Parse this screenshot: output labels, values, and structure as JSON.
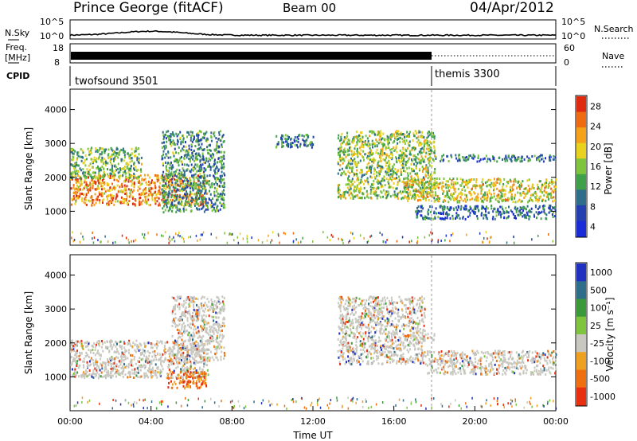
{
  "header": {
    "title": "Prince George (fitACF)",
    "beam": "Beam 00",
    "date": "04/Apr/2012"
  },
  "strip_sky": {
    "label": "N.Sky",
    "right_label": "N.Search",
    "left_ticks": [
      "10^5",
      "10^0"
    ],
    "right_ticks": [
      "10^5",
      "10^0"
    ]
  },
  "strip_freq": {
    "label_line1": "Freq.",
    "label_line2": "[MHz]",
    "right_label": "Nave",
    "left_ticks": [
      "18",
      "8"
    ],
    "right_ticks": [
      "60",
      "0"
    ]
  },
  "cpid": {
    "label": "CPID",
    "programs": [
      {
        "name": "twofsound 3501",
        "start_hour": 0
      },
      {
        "name": "themis 3300",
        "start_hour": 18
      }
    ],
    "boundary_hour": 18
  },
  "colors": {
    "power_scale": [
      "#1a2bd8",
      "#2440b0",
      "#2e6e8a",
      "#3fa04a",
      "#7ec43c",
      "#e8d21e",
      "#f5a21a",
      "#f06a12",
      "#e02a10"
    ],
    "velocity_scale": [
      "#2030c0",
      "#2e6e8a",
      "#3a9a3a",
      "#7ec43c",
      "#c8c8c0",
      "#f0a020",
      "#f07010",
      "#e83010"
    ],
    "ground_scatter": "#c0c0b8"
  },
  "chart_data": [
    {
      "type": "heatmap",
      "name": "power",
      "ylabel": "Slant Range [km]",
      "xlim_hours": [
        0,
        24
      ],
      "ylim": [
        0,
        4600
      ],
      "yticks": [
        "1000",
        "2000",
        "3000",
        "4000"
      ],
      "colorbar": {
        "label": "Power [dB]",
        "ticks": [
          "4",
          "8",
          "12",
          "16",
          "20",
          "24",
          "28"
        ],
        "range": [
          0,
          30
        ]
      },
      "scatter_regions": [
        {
          "x": [
            0.0,
            6.8
          ],
          "y": [
            1200,
            2100
          ],
          "level": 0.75
        },
        {
          "x": [
            0.0,
            3.5
          ],
          "y": [
            2000,
            2900
          ],
          "level": 0.45
        },
        {
          "x": [
            4.5,
            7.6
          ],
          "y": [
            1000,
            3400
          ],
          "level": 0.35
        },
        {
          "x": [
            10.0,
            12.0
          ],
          "y": [
            2900,
            3300
          ],
          "level": 0.3
        },
        {
          "x": [
            13.2,
            18.0
          ],
          "y": [
            1400,
            3400
          ],
          "level": 0.5
        },
        {
          "x": [
            16.5,
            24.0
          ],
          "y": [
            1300,
            2000
          ],
          "level": 0.6
        },
        {
          "x": [
            17.0,
            24.0
          ],
          "y": [
            800,
            1200
          ],
          "level": 0.25
        },
        {
          "x": [
            18.0,
            24.0
          ],
          "y": [
            2500,
            2700
          ],
          "level": 0.3
        }
      ]
    },
    {
      "type": "heatmap",
      "name": "velocity",
      "ylabel": "Slant Range [km]",
      "xlabel": "Time UT",
      "xlim_hours": [
        0,
        24
      ],
      "ylim": [
        0,
        4600
      ],
      "yticks": [
        "1000",
        "2000",
        "3000",
        "4000"
      ],
      "xticks": [
        "00:00",
        "04:00",
        "08:00",
        "12:00",
        "16:00",
        "20:00",
        "00:00"
      ],
      "colorbar": {
        "label": "Velocity [m s⁻¹]",
        "ticks": [
          "1000",
          "500",
          "100",
          "25",
          "-25",
          "-100",
          "-500",
          "-1000"
        ]
      },
      "scatter_regions": [
        {
          "x": [
            0.0,
            6.8
          ],
          "y": [
            1000,
            2100
          ],
          "level": 0.5
        },
        {
          "x": [
            4.8,
            6.7
          ],
          "y": [
            700,
            1200
          ],
          "level": 0.8
        },
        {
          "x": [
            5.0,
            7.6
          ],
          "y": [
            1500,
            3400
          ],
          "level": 0.5
        },
        {
          "x": [
            13.2,
            17.5
          ],
          "y": [
            1400,
            3400
          ],
          "level": 0.5
        },
        {
          "x": [
            16.5,
            18.0
          ],
          "y": [
            2100,
            2300
          ],
          "level": 0.2
        },
        {
          "x": [
            17.5,
            24.0
          ],
          "y": [
            1100,
            1800
          ],
          "level": 0.5
        }
      ]
    }
  ]
}
